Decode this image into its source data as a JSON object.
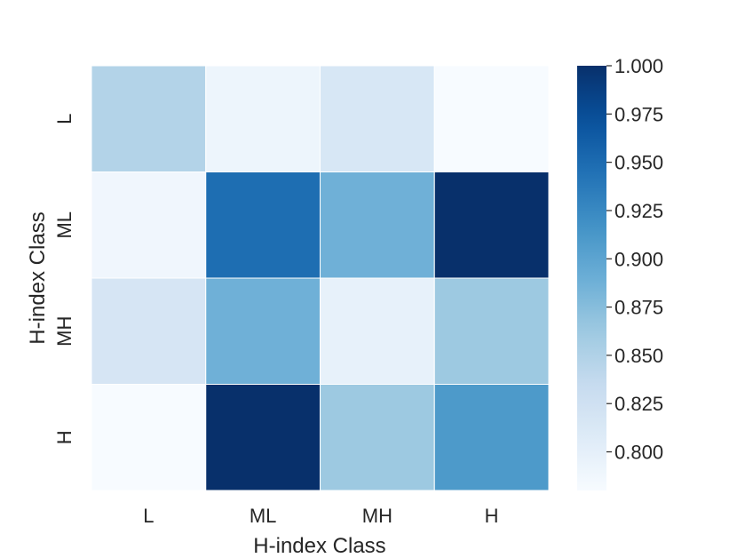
{
  "chart_data": {
    "type": "heatmap",
    "title": "",
    "xlabel": "H-index Class",
    "ylabel": "H-index Class",
    "x_categories": [
      "L",
      "ML",
      "MH",
      "H"
    ],
    "y_categories": [
      "L",
      "ML",
      "MH",
      "H"
    ],
    "values": [
      [
        0.848,
        0.791,
        0.815,
        0.78
      ],
      [
        0.788,
        0.948,
        0.888,
        1.0
      ],
      [
        0.817,
        0.888,
        0.798,
        0.863
      ],
      [
        0.78,
        1.0,
        0.863,
        0.91
      ]
    ],
    "colormap": "Blues",
    "colorbar": {
      "min": 0.78,
      "max": 1.0,
      "ticks": [
        "0.800",
        "0.825",
        "0.850",
        "0.875",
        "0.900",
        "0.925",
        "0.950",
        "0.975",
        "1.000"
      ],
      "tick_values": [
        0.8,
        0.825,
        0.85,
        0.875,
        0.9,
        0.925,
        0.95,
        0.975,
        1.0
      ]
    },
    "grid": true,
    "cell_border_color": "#ffffff"
  }
}
